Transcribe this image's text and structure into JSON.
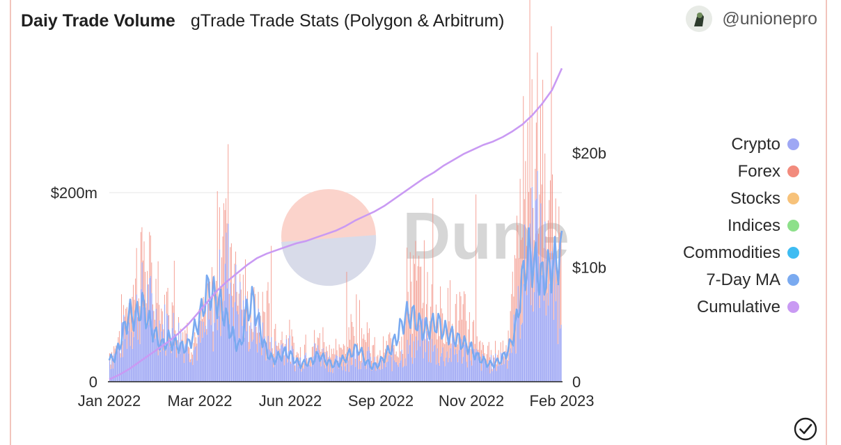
{
  "header": {
    "title": "Daiy Trade Volume",
    "subtitle": "gTrade Trade Stats (Polygon & Arbitrum)",
    "author": "@unionepro"
  },
  "watermark": "Dune",
  "legend": [
    {
      "label": "Crypto",
      "color": "#9ea7f4"
    },
    {
      "label": "Forex",
      "color": "#f28b7d"
    },
    {
      "label": "Stocks",
      "color": "#f7c27a"
    },
    {
      "label": "Indices",
      "color": "#8de08a"
    },
    {
      "label": "Commodities",
      "color": "#3ebcf2"
    },
    {
      "label": "7-Day MA",
      "color": "#7aaaf0"
    },
    {
      "label": "Cumulative",
      "color": "#c99af3"
    }
  ],
  "chart_data": {
    "type": "bar",
    "title": "Daiy Trade Volume",
    "legend_position": "right",
    "grid": true,
    "x_range": [
      "2022-01-01",
      "2023-02-28"
    ],
    "xticks": [
      "Jan 2022",
      "Mar 2022",
      "Jun 2022",
      "Sep 2022",
      "Nov 2022",
      "Feb 2023"
    ],
    "y_left": {
      "ticks": [
        "0",
        "$200m"
      ],
      "range": [
        0,
        330000000
      ]
    },
    "y_right": {
      "ticks": [
        "0",
        "$10b",
        "$20b"
      ],
      "range": [
        0,
        28000000000
      ]
    },
    "series": [
      {
        "name": "Crypto",
        "kind": "bar",
        "axis": "left",
        "values_m": [
          22,
          30,
          45,
          60,
          70,
          85,
          80,
          65,
          55,
          60,
          50,
          45,
          40,
          35,
          45,
          55,
          65,
          100,
          120,
          90,
          75,
          60,
          55,
          50,
          40,
          30,
          35,
          40,
          25,
          20,
          30,
          28,
          30,
          25,
          20,
          18,
          20,
          25,
          28,
          30,
          20,
          15,
          18,
          22,
          25,
          30,
          35,
          40,
          45,
          35,
          30,
          28,
          30,
          32,
          35,
          30,
          25,
          20,
          18,
          20,
          25,
          30,
          55,
          90,
          140,
          160,
          130,
          110,
          90,
          85
        ]
      },
      {
        "name": "Forex",
        "kind": "bar",
        "axis": "left",
        "values_m": [
          8,
          10,
          20,
          30,
          40,
          55,
          30,
          25,
          15,
          20,
          18,
          12,
          10,
          10,
          15,
          20,
          30,
          50,
          85,
          40,
          35,
          20,
          18,
          15,
          40,
          20,
          10,
          12,
          10,
          8,
          12,
          10,
          15,
          20,
          15,
          10,
          20,
          35,
          40,
          30,
          15,
          12,
          15,
          18,
          20,
          35,
          90,
          60,
          50,
          40,
          45,
          50,
          48,
          40,
          35,
          30,
          20,
          15,
          12,
          10,
          12,
          20,
          60,
          130,
          120,
          90,
          70,
          60,
          70,
          60
        ]
      },
      {
        "name": "7-Day MA",
        "kind": "line",
        "axis": "left",
        "values_m": [
          25,
          30,
          55,
          80,
          75,
          90,
          70,
          55,
          42,
          50,
          45,
          40,
          42,
          60,
          80,
          110,
          100,
          90,
          70,
          50,
          40,
          85,
          95,
          60,
          35,
          25,
          30,
          35,
          28,
          20,
          22,
          25,
          32,
          25,
          20,
          22,
          28,
          35,
          40,
          25,
          18,
          20,
          30,
          40,
          55,
          75,
          80,
          70,
          60,
          65,
          70,
          60,
          55,
          50,
          45,
          40,
          30,
          25,
          20,
          22,
          28,
          40,
          65,
          120,
          150,
          135,
          120,
          130,
          140,
          150
        ]
      },
      {
        "name": "Cumulative",
        "kind": "line",
        "axis": "right",
        "values_b": [
          0.2,
          0.6,
          1.1,
          1.7,
          2.3,
          2.9,
          3.5,
          4.2,
          5.0,
          6.0,
          7.0,
          8.0,
          8.8,
          9.5,
          10.2,
          10.8,
          11.2,
          11.5,
          11.8,
          12.1,
          12.3,
          12.6,
          12.9,
          13.2,
          13.6,
          14.1,
          14.5,
          14.9,
          15.4,
          16.0,
          16.6,
          17.2,
          17.8,
          18.3,
          18.9,
          19.4,
          19.9,
          20.3,
          20.7,
          21.0,
          21.4,
          21.9,
          22.5,
          23.3,
          24.3,
          25.5,
          27.4
        ]
      }
    ]
  }
}
